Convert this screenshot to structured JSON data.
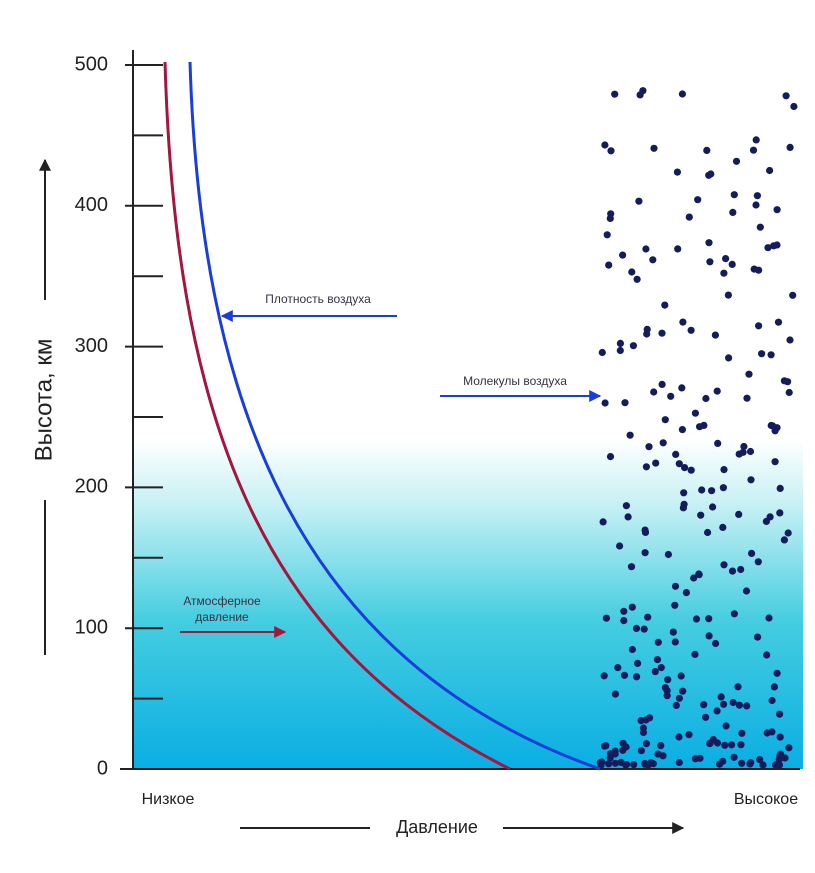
{
  "chart_data": {
    "type": "line",
    "ylabel": "Высота, км",
    "xlabel": "Давление",
    "x_start_label": "Низкое",
    "x_end_label": "Высокое",
    "ylim": [
      0,
      500
    ],
    "yticks": [
      0,
      100,
      200,
      300,
      400,
      500
    ],
    "yminorticks": [
      50,
      150,
      250,
      350,
      450
    ],
    "annotations": {
      "density": "Плотность воздуха",
      "molecules": "Молекулы воздуха",
      "pressure": [
        "Атмосферное",
        "давление"
      ]
    }
  }
}
